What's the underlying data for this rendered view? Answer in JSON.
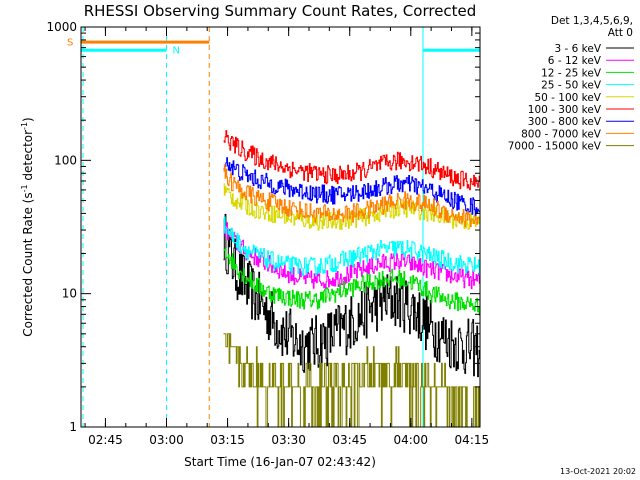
{
  "chart_data": {
    "type": "line",
    "title": "RHESSI Observing Summary Count Rates, Corrected",
    "xlabel": "Start Time (16-Jan-07 02:43:42)",
    "ylabel_parts": [
      "Corrected Count Rate (s",
      "-1",
      " detector",
      "-1",
      ")"
    ],
    "yscale": "log",
    "ylim": [
      1,
      1000
    ],
    "xlim_minutes": [
      -4,
      94
    ],
    "x_ticks": [
      {
        "minute": 2,
        "label": "02:45"
      },
      {
        "minute": 17,
        "label": "03:00"
      },
      {
        "minute": 32,
        "label": "03:15"
      },
      {
        "minute": 47,
        "label": "03:30"
      },
      {
        "minute": 62,
        "label": "03:45"
      },
      {
        "minute": 77,
        "label": "04:00"
      },
      {
        "minute": 92,
        "label": "04:15"
      }
    ],
    "y_ticks": [
      {
        "value": 1,
        "label": "1"
      },
      {
        "value": 10,
        "label": "10"
      },
      {
        "value": 100,
        "label": "100"
      },
      {
        "value": 1000,
        "label": "1000"
      }
    ],
    "legend_header": [
      "Det 1,3,4,5,6,9,",
      "Att 0"
    ],
    "legend_position": "right",
    "series": [
      {
        "name": "3 - 6 keV",
        "color": "#000000",
        "x_minutes": [
          31,
          34,
          37,
          40,
          43,
          46,
          50,
          54,
          58,
          62,
          66,
          70,
          74,
          78,
          82,
          86,
          90,
          94
        ],
        "values": [
          27,
          15,
          11,
          8.5,
          6.5,
          5,
          4.2,
          4.2,
          5,
          6,
          7.5,
          9,
          9,
          7.5,
          5.5,
          4.5,
          4,
          3.8
        ]
      },
      {
        "name": "6 - 12 keV",
        "color": "#ff00ff",
        "x_minutes": [
          31,
          34,
          37,
          40,
          43,
          46,
          50,
          54,
          58,
          62,
          66,
          70,
          74,
          78,
          82,
          86,
          90,
          94
        ],
        "values": [
          32,
          24,
          20,
          18,
          16,
          14.5,
          13,
          12.5,
          13,
          14,
          15.5,
          17,
          17.5,
          16.5,
          15,
          14,
          13,
          12.5
        ]
      },
      {
        "name": "12 - 25 keV",
        "color": "#00e000",
        "x_minutes": [
          31,
          34,
          37,
          40,
          43,
          46,
          50,
          54,
          58,
          62,
          66,
          70,
          74,
          78,
          82,
          86,
          90,
          94
        ],
        "values": [
          22,
          16,
          13,
          11,
          10,
          9.5,
          9,
          9,
          10,
          11,
          12,
          13,
          13,
          12,
          10,
          9,
          8.5,
          8
        ]
      },
      {
        "name": "25 - 50 keV",
        "color": "#00ffff",
        "x_minutes": [
          31,
          34,
          37,
          40,
          43,
          46,
          50,
          54,
          58,
          62,
          66,
          70,
          74,
          78,
          82,
          86,
          90,
          94
        ],
        "values": [
          33,
          25,
          21,
          19,
          17.5,
          16.5,
          16,
          16,
          17,
          18.5,
          20,
          21.5,
          22,
          21,
          19,
          17.5,
          16.5,
          16
        ]
      },
      {
        "name": "50 - 100 keV",
        "color": "#d8d800",
        "x_minutes": [
          31,
          34,
          37,
          40,
          43,
          46,
          50,
          54,
          58,
          62,
          66,
          70,
          74,
          78,
          82,
          86,
          90,
          94
        ],
        "values": [
          60,
          50,
          45,
          42,
          40,
          38,
          36,
          35,
          35,
          36,
          38,
          41,
          44,
          43,
          40,
          37,
          35,
          34
        ]
      },
      {
        "name": "100 - 300 keV",
        "color": "#ff0000",
        "x_minutes": [
          31,
          34,
          37,
          40,
          43,
          46,
          50,
          54,
          58,
          62,
          66,
          70,
          74,
          78,
          82,
          86,
          90,
          94
        ],
        "values": [
          150,
          128,
          113,
          103,
          95,
          89,
          83,
          79,
          77,
          79,
          85,
          93,
          99,
          97,
          88,
          77,
          70,
          66
        ]
      },
      {
        "name": "300 - 800 keV",
        "color": "#0000ff",
        "x_minutes": [
          31,
          34,
          37,
          40,
          43,
          46,
          50,
          54,
          58,
          62,
          66,
          70,
          74,
          78,
          82,
          86,
          90,
          94
        ],
        "values": [
          100,
          85,
          76,
          70,
          66,
          62,
          59,
          56,
          55,
          56,
          59,
          63,
          67,
          65,
          59,
          52,
          47,
          44
        ]
      },
      {
        "name": "800 - 7000 keV",
        "color": "#ff8000",
        "x_minutes": [
          31,
          34,
          37,
          40,
          43,
          46,
          50,
          54,
          58,
          62,
          66,
          70,
          74,
          78,
          82,
          86,
          90,
          94
        ],
        "values": [
          80,
          64,
          56,
          51,
          48,
          45,
          42,
          40,
          39,
          40,
          42,
          46,
          50,
          49,
          45,
          40,
          37,
          35
        ]
      },
      {
        "name": "7000 - 15000 keV",
        "color": "#808000",
        "x_minutes": [
          31,
          34,
          37,
          40,
          43,
          46,
          50,
          54,
          58,
          62,
          66,
          70,
          74,
          78,
          82,
          86,
          90,
          94
        ],
        "values": [
          4.5,
          3.5,
          2.5,
          2.5,
          2,
          2,
          2,
          2,
          2,
          2,
          2.5,
          2.5,
          2.5,
          2,
          2,
          1.5,
          1.5,
          1.5
        ]
      }
    ],
    "flags": [
      {
        "label": "S",
        "color": "#ff8000",
        "y_value": 770,
        "x_start_minute": -4,
        "x_end_minute": 27.5
      },
      {
        "label": "N",
        "color": "#00ffff",
        "y_value": 670,
        "x_start_minute": -4,
        "x_end_minute": 17
      },
      {
        "label": "",
        "color": "#00ffff",
        "y_value": 670,
        "x_start_minute": 80,
        "x_end_minute": 94
      }
    ],
    "vertical_markers": [
      {
        "x_minute": -3.5,
        "color": "#00ffff",
        "style": "dashed"
      },
      {
        "x_minute": 17,
        "color": "#00ffff",
        "style": "dashed"
      },
      {
        "x_minute": 27.5,
        "color": "#ff8000",
        "style": "dashed"
      },
      {
        "x_minute": 80,
        "color": "#00ffff",
        "style": "solid"
      },
      {
        "x_minute": 94,
        "color": "#00ffff",
        "style": "dashed"
      }
    ],
    "footer": "13-Oct-2021 20:02"
  }
}
